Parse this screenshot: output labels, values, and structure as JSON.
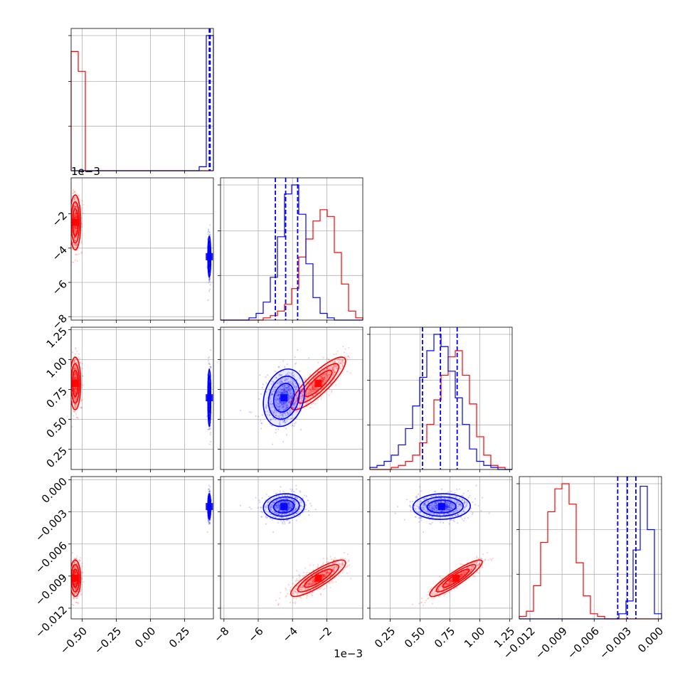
{
  "chart_data": {
    "type": "scatter",
    "subtype": "corner-plot",
    "dimensions": 4,
    "series": [
      {
        "color": "#ff0000",
        "samples_mean": [
          -0.55,
          -0.0025,
          0.8,
          -0.0092
        ],
        "samples_sd": [
          0.02,
          0.0008,
          0.11,
          0.00085
        ],
        "correlations": {
          "1-2": 0.85,
          "1-3": 0.85,
          "2-3": 0.9
        },
        "hist_1d": [
          [
            30,
            25,
            0,
            0,
            0,
            0,
            0,
            0,
            0,
            0,
            0,
            0,
            0,
            0,
            0,
            0,
            0,
            0,
            0,
            0
          ],
          [
            0,
            0,
            0,
            0,
            0,
            0,
            1,
            2,
            4,
            7,
            14,
            28,
            36,
            44,
            49,
            46,
            30,
            16,
            4,
            1
          ],
          [
            0,
            0,
            0,
            1,
            2,
            4,
            7,
            13,
            22,
            34,
            46,
            55,
            58,
            46,
            32,
            16,
            7,
            2,
            1,
            0
          ],
          [
            1,
            3,
            13,
            30,
            42,
            51,
            53,
            45,
            22,
            9,
            2,
            1,
            0,
            0,
            0,
            0,
            0,
            0,
            0,
            0
          ]
        ]
      },
      {
        "color": "#0000ff",
        "samples_mean": [
          0.43,
          -0.0045,
          0.68,
          -0.0025
        ],
        "samples_sd": [
          0.005,
          0.0006,
          0.12,
          0.0006
        ],
        "correlations": {
          "1-2": 0.2,
          "1-3": 0.1,
          "2-3": 0.05
        },
        "quantiles": [
          [
            0.43,
            0.433,
            0.436
          ],
          [
            -0.005,
            -0.0044,
            -0.0037
          ],
          [
            0.52,
            0.67,
            0.81
          ],
          [
            -0.0038,
            -0.0029,
            -0.0021
          ]
        ],
        "hist_1d": [
          [
            0,
            0,
            0,
            0,
            0,
            0,
            0,
            0,
            0,
            0,
            0,
            0,
            0,
            0,
            0,
            0,
            0,
            0,
            1,
            34
          ],
          [
            0,
            0,
            0,
            0,
            1,
            3,
            8,
            19,
            37,
            56,
            60,
            47,
            25,
            10,
            3,
            1,
            0,
            0,
            0,
            0
          ],
          [
            1,
            2,
            4,
            7,
            12,
            20,
            31,
            45,
            58,
            66,
            60,
            48,
            35,
            22,
            10,
            4,
            2,
            1,
            0,
            0
          ],
          [
            0,
            0,
            0,
            0,
            0,
            0,
            0,
            0,
            0,
            0,
            0,
            0,
            0,
            0,
            2,
            7,
            27,
            52,
            35,
            2
          ]
        ]
      }
    ],
    "axes": [
      {
        "range": [
          -0.58,
          0.46
        ],
        "ticks": [
          -0.5,
          -0.25,
          0.0,
          0.25
        ],
        "tick_labels": [
          "−0.50",
          "−0.25",
          "0.00",
          "0.25"
        ],
        "offset_label": ""
      },
      {
        "range": [
          -0.0082,
          0.0001
        ],
        "ticks": [
          -0.008,
          -0.006,
          -0.004,
          -0.002
        ],
        "tick_labels": [
          "−8",
          "−6",
          "−4",
          "−2"
        ],
        "offset_label": "1e−3"
      },
      {
        "range": [
          0.08,
          1.27
        ],
        "ticks": [
          0.25,
          0.5,
          0.75,
          1.0,
          1.25
        ],
        "tick_labels": [
          "0.25",
          "0.50",
          "0.75",
          "1.00",
          "1.25"
        ],
        "offset_label": ""
      },
      {
        "range": [
          -0.013,
          0.0003
        ],
        "ticks": [
          -0.012,
          -0.009,
          -0.006,
          -0.003,
          0.0
        ],
        "tick_labels": [
          "−0.012",
          "−0.009",
          "−0.006",
          "−0.003",
          "0.000"
        ],
        "offset_label": ""
      }
    ],
    "title": "",
    "xlabel": "",
    "ylabel": "",
    "grid": true,
    "legend": "none"
  }
}
